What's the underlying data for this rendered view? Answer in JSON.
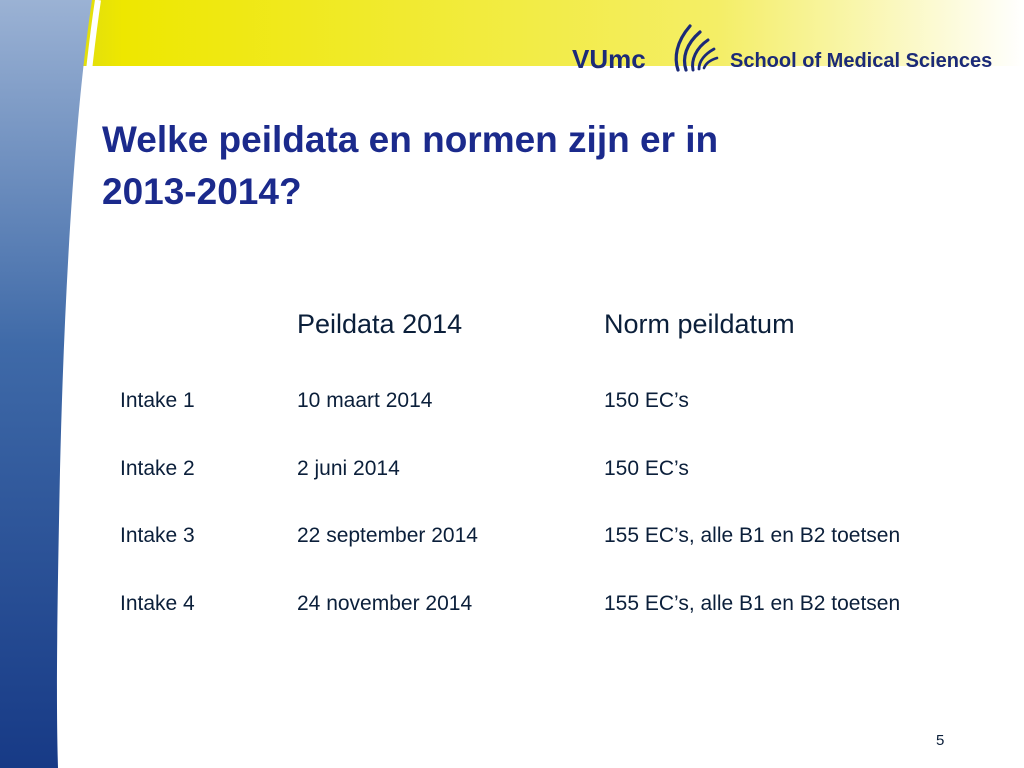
{
  "logo": {
    "brand": "VUmc",
    "school": "School of Medical Sciences"
  },
  "slide": {
    "title_line1": "Welke peildata en normen zijn er in",
    "title_line2": "2013-2014?",
    "page_number": "5"
  },
  "table": {
    "headers": [
      "",
      "Peildata 2014",
      "Norm peildatum"
    ],
    "rows": [
      [
        "Intake 1",
        "10 maart 2014",
        "150 EC’s"
      ],
      [
        "Intake 2",
        "2 juni 2014",
        "150 EC’s"
      ],
      [
        "Intake 3",
        "22 september 2014",
        "155 EC’s, alle B1 en B2 toetsen"
      ],
      [
        "Intake 4",
        "24 november 2014",
        "155 EC’s, alle B1 en B2 toetsen"
      ]
    ]
  },
  "colors": {
    "brand_blue": "#1b2a8c",
    "header_yellow": "#f2ea00",
    "sidebar_blue": "#1a3f8a"
  }
}
